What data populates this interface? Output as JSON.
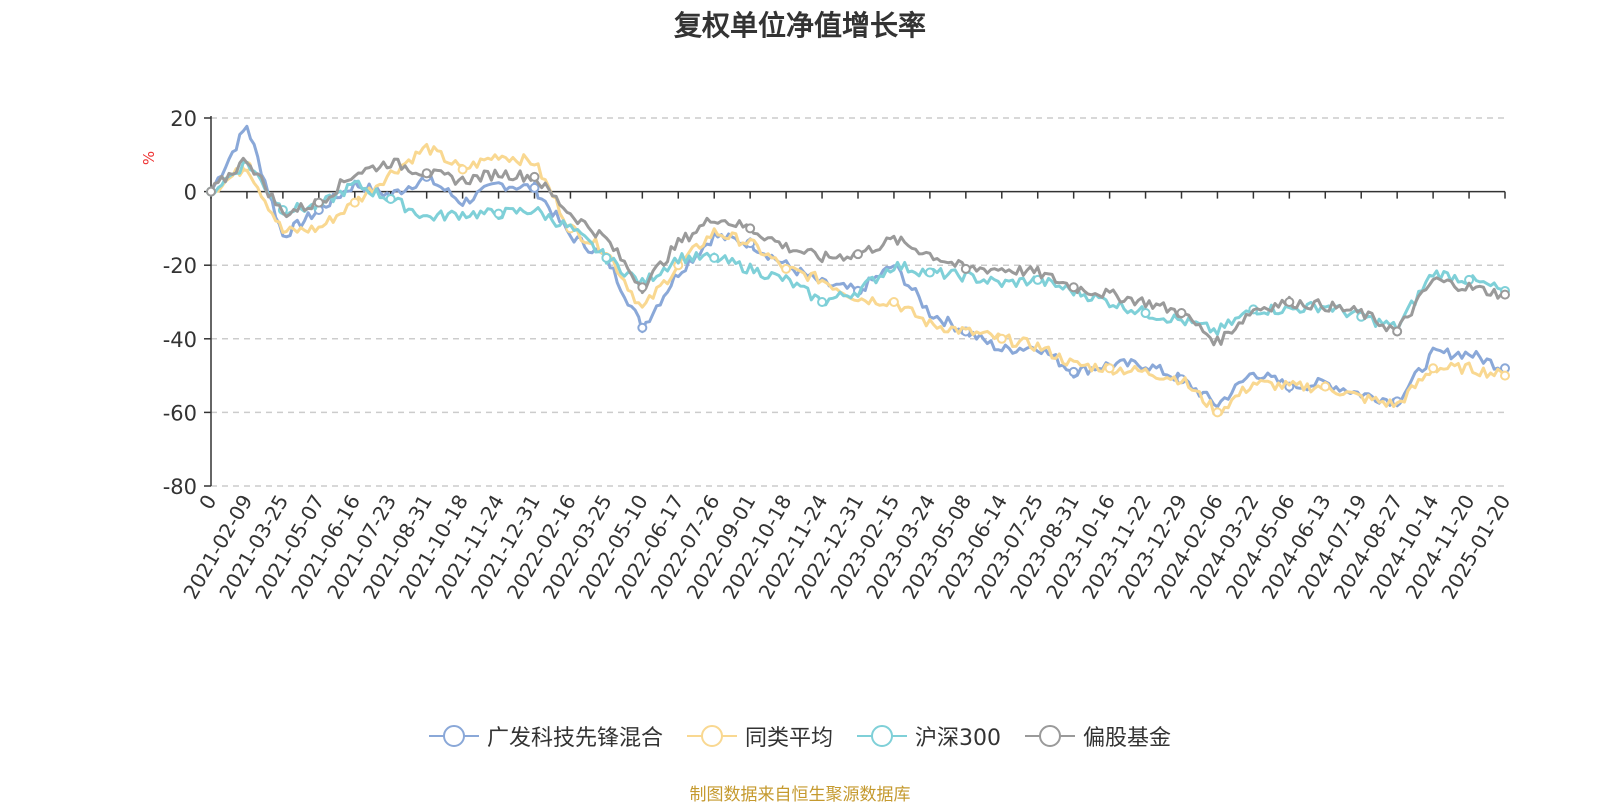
{
  "chart_data": {
    "type": "line",
    "title": "复权单位净值增长率",
    "ylabel": "%",
    "xlabel": "",
    "ylim": [
      -80,
      20
    ],
    "yticks": [
      20,
      0,
      -20,
      -40,
      -60,
      -80
    ],
    "grid": true,
    "legend_position": "bottom",
    "x_tick_labels": [
      "0",
      "2021-02-09",
      "2021-03-25",
      "2021-05-07",
      "2021-06-16",
      "2021-07-23",
      "2021-08-31",
      "2021-10-18",
      "2021-11-24",
      "2021-12-31",
      "2022-02-16",
      "2022-03-25",
      "2022-05-10",
      "2022-06-17",
      "2022-07-26",
      "2022-09-01",
      "2022-10-18",
      "2022-11-24",
      "2022-12-31",
      "2023-02-15",
      "2023-03-24",
      "2023-05-08",
      "2023-06-14",
      "2023-07-25",
      "2023-08-31",
      "2023-10-16",
      "2023-11-22",
      "2023-12-29",
      "2024-02-06",
      "2024-03-22",
      "2024-05-06",
      "2024-06-13",
      "2024-07-19",
      "2024-08-27",
      "2024-10-14",
      "2024-11-20",
      "2025-01-20"
    ],
    "series": [
      {
        "name": "广发科技先锋混合",
        "color": "#8aa8d8",
        "values": [
          0,
          18,
          -12,
          -5,
          2,
          -1,
          4,
          -3,
          2,
          1,
          -12,
          -18,
          -37,
          -22,
          -12,
          -14,
          -20,
          -25,
          -27,
          -20,
          -33,
          -38,
          -43,
          -42,
          -49,
          -47,
          -47,
          -51,
          -58,
          -49,
          -53,
          -52,
          -55,
          -57,
          -44,
          -44,
          -48
        ]
      },
      {
        "name": "同类平均",
        "color": "#f9d891",
        "values": [
          0,
          7,
          -11,
          -10,
          -3,
          5,
          12,
          6,
          10,
          8,
          -10,
          -16,
          -32,
          -20,
          -11,
          -14,
          -21,
          -24,
          -29,
          -30,
          -36,
          -38,
          -40,
          -42,
          -47,
          -48,
          -49,
          -51,
          -60,
          -52,
          -53,
          -53,
          -56,
          -58,
          -48,
          -48,
          -50
        ]
      },
      {
        "name": "沪深300",
        "color": "#7fd0d8",
        "values": [
          0,
          8,
          -5,
          -4,
          2,
          -2,
          -7,
          -6,
          -6,
          -5,
          -10,
          -18,
          -25,
          -18,
          -18,
          -21,
          -24,
          -30,
          -27,
          -20,
          -22,
          -23,
          -25,
          -24,
          -27,
          -30,
          -33,
          -35,
          -38,
          -32,
          -32,
          -31,
          -34,
          -37,
          -22,
          -24,
          -27
        ]
      },
      {
        "name": "偏股基金",
        "color": "#9a9a9a",
        "values": [
          0,
          9,
          -6,
          -3,
          5,
          8,
          5,
          3,
          5,
          4,
          -6,
          -13,
          -26,
          -14,
          -7,
          -10,
          -15,
          -18,
          -17,
          -13,
          -17,
          -21,
          -21,
          -22,
          -26,
          -28,
          -30,
          -33,
          -41,
          -32,
          -30,
          -31,
          -33,
          -38,
          -24,
          -26,
          -28
        ]
      }
    ]
  },
  "footer": {
    "source_note": "制图数据来自恒生聚源数据库"
  }
}
